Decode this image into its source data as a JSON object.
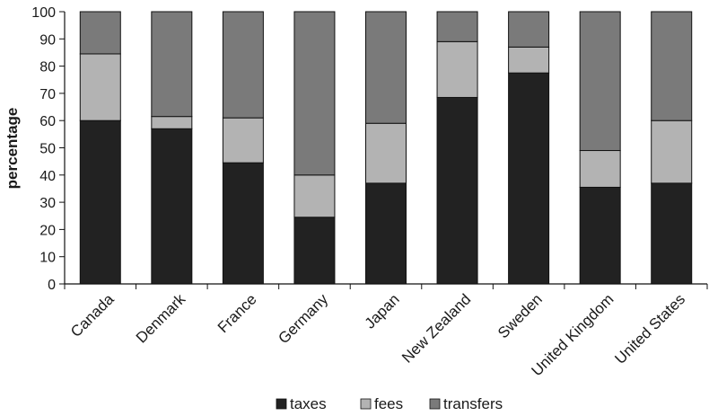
{
  "chart_data": {
    "type": "bar",
    "stacked": true,
    "categories": [
      "Canada",
      "Denmark",
      "France",
      "Germany",
      "Japan",
      "New Zealand",
      "Sweden",
      "United Kingdom",
      "United States"
    ],
    "series": [
      {
        "name": "taxes",
        "color": "#222222",
        "values": [
          60,
          57,
          44.5,
          24.5,
          37,
          68.5,
          77.5,
          35.5,
          37
        ]
      },
      {
        "name": "fees",
        "color": "#b3b3b3",
        "values": [
          24.5,
          4.5,
          16.5,
          15.5,
          22,
          20.5,
          9.5,
          13.5,
          23
        ]
      },
      {
        "name": "transfers",
        "color": "#7a7a7a",
        "values": [
          15.5,
          38.5,
          39,
          60,
          41,
          11,
          13,
          51,
          40
        ]
      }
    ],
    "ylabel": "percentage",
    "xlabel": "",
    "ylim": [
      0,
      100
    ],
    "yticks": [
      "0",
      "10",
      "20",
      "30",
      "40",
      "50",
      "60",
      "70",
      "80",
      "90",
      "100"
    ],
    "grid": false,
    "legend_position": "bottom"
  }
}
